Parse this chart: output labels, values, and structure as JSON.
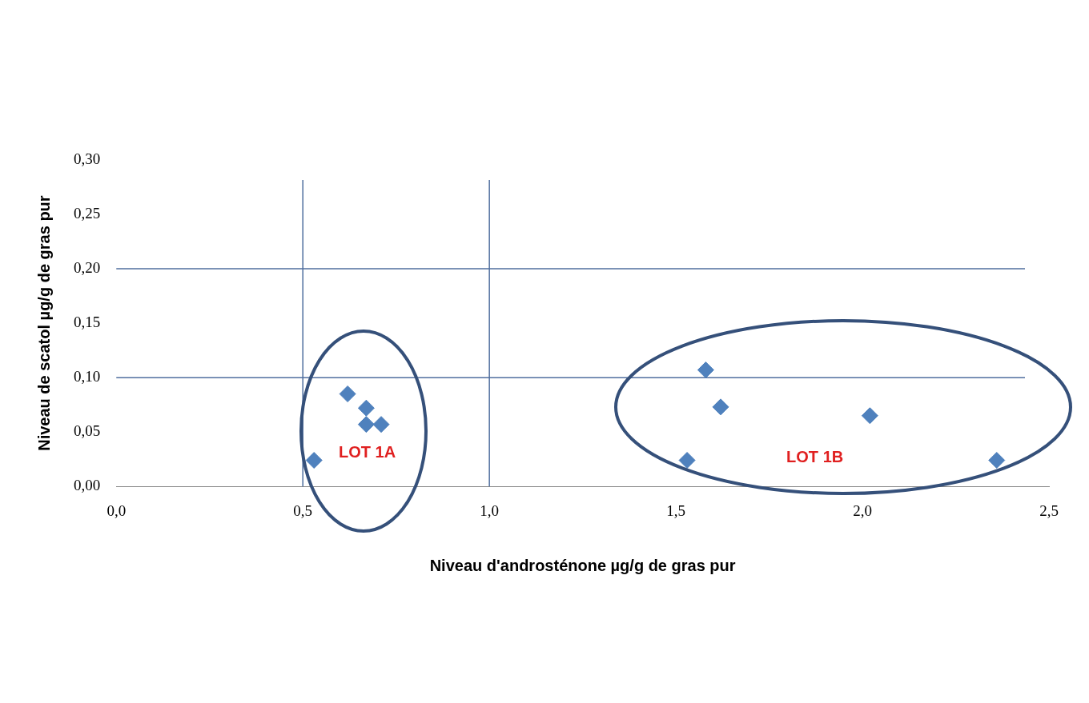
{
  "chart_data": {
    "type": "scatter",
    "xlabel": "Niveau d'androsténone µg/g de gras pur",
    "ylabel": "Niveau de scatol µg/g de gras pur",
    "series": [
      {
        "color": "#4f81bd",
        "x": [
          0.62,
          0.67,
          0.67,
          0.71,
          0.53,
          1.58,
          1.62,
          2.02,
          1.53,
          2.36
        ],
        "values": [
          0.085,
          0.072,
          0.057,
          0.057,
          0.024,
          0.107,
          0.073,
          0.065,
          0.024,
          0.024
        ]
      }
    ],
    "marker": "diamond",
    "xlim": [
      0,
      2.5
    ],
    "xticks": [
      {
        "value": 0,
        "label": "0,0"
      },
      {
        "value": 0.5,
        "label": "0,5"
      },
      {
        "value": 1,
        "label": "1,0"
      },
      {
        "value": 1.5,
        "label": "1,5"
      },
      {
        "value": 2,
        "label": "2,0"
      },
      {
        "value": 2.5,
        "label": "2,5"
      }
    ],
    "ylim": [
      0,
      0.3
    ],
    "yticks": [
      {
        "value": 0,
        "label": "0,00"
      },
      {
        "value": 0.05,
        "label": "0,05"
      },
      {
        "value": 0.1,
        "label": "0,10"
      },
      {
        "value": 0.15,
        "label": "0,15"
      },
      {
        "value": 0.2,
        "label": "0,20"
      },
      {
        "value": 0.25,
        "label": "0,25"
      },
      {
        "value": 0.3,
        "label": "0,30"
      }
    ],
    "ref_lines": [
      {
        "axis": "x",
        "value": 0.5,
        "color": "#4f6e9e"
      },
      {
        "axis": "x",
        "value": 1,
        "color": "#4f6e9e"
      },
      {
        "axis": "y",
        "value": 0.1,
        "color": "#4f6e9e"
      },
      {
        "axis": "y",
        "value": 0.2,
        "color": "#4f6e9e"
      }
    ],
    "annotations": [
      "LOT 1A",
      "LOT 1B"
    ],
    "grid": false,
    "legend": false
  }
}
